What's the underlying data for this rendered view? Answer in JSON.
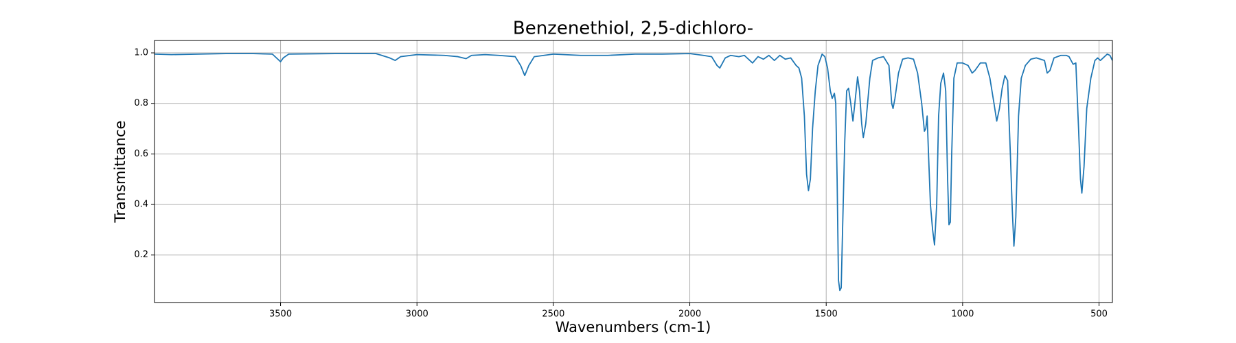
{
  "chart_data": {
    "type": "line",
    "title": "Benzenethiol, 2,5-dichloro-",
    "x_label": "Wavenumbers (cm-1)",
    "y_label": "Transmittance",
    "xlim": [
      3962,
      451
    ],
    "ylim": [
      0.012,
      1.049
    ],
    "xticks": [
      3500,
      3000,
      2500,
      2000,
      1500,
      1000,
      500
    ],
    "yticks": [
      0.2,
      0.4,
      0.6,
      0.8,
      {
        "value": 1,
        "label": "1.0"
      }
    ],
    "grid": true,
    "series": [
      {
        "color": "#1f77b4",
        "x": [
          3962,
          3900,
          3800,
          3700,
          3600,
          3530,
          3510,
          3500,
          3490,
          3470,
          3300,
          3150,
          3100,
          3080,
          3060,
          3000,
          2900,
          2850,
          2820,
          2800,
          2750,
          2700,
          2640,
          2620,
          2605,
          2590,
          2570,
          2500,
          2400,
          2300,
          2200,
          2100,
          2000,
          1950,
          1920,
          1900,
          1890,
          1870,
          1850,
          1820,
          1800,
          1770,
          1750,
          1730,
          1710,
          1690,
          1670,
          1650,
          1630,
          1610,
          1600,
          1590,
          1580,
          1572,
          1565,
          1558,
          1550,
          1540,
          1530,
          1515,
          1505,
          1495,
          1485,
          1478,
          1470,
          1465,
          1460,
          1455,
          1450,
          1445,
          1440,
          1432,
          1425,
          1418,
          1410,
          1402,
          1395,
          1385,
          1378,
          1370,
          1364,
          1355,
          1340,
          1330,
          1310,
          1290,
          1270,
          1260,
          1255,
          1248,
          1235,
          1220,
          1200,
          1180,
          1165,
          1150,
          1140,
          1135,
          1130,
          1125,
          1118,
          1110,
          1103,
          1095,
          1088,
          1080,
          1070,
          1062,
          1055,
          1050,
          1045,
          1040,
          1032,
          1020,
          1000,
          980,
          965,
          955,
          935,
          915,
          900,
          885,
          875,
          865,
          855,
          845,
          835,
          825,
          818,
          812,
          805,
          795,
          785,
          770,
          750,
          730,
          700,
          690,
          680,
          665,
          640,
          620,
          610,
          595,
          585,
          575,
          568,
          563,
          555,
          545,
          530,
          515,
          505,
          495,
          485,
          470,
          460,
          451
        ],
        "values": [
          0.995,
          0.993,
          0.995,
          0.997,
          0.997,
          0.995,
          0.975,
          0.965,
          0.98,
          0.995,
          0.997,
          0.997,
          0.98,
          0.97,
          0.985,
          0.993,
          0.99,
          0.985,
          0.977,
          0.99,
          0.993,
          0.99,
          0.985,
          0.95,
          0.91,
          0.95,
          0.985,
          0.995,
          0.99,
          0.99,
          0.995,
          0.995,
          0.997,
          0.99,
          0.985,
          0.95,
          0.94,
          0.98,
          0.99,
          0.985,
          0.99,
          0.96,
          0.985,
          0.975,
          0.99,
          0.97,
          0.99,
          0.975,
          0.98,
          0.95,
          0.94,
          0.9,
          0.75,
          0.52,
          0.455,
          0.5,
          0.7,
          0.85,
          0.95,
          0.995,
          0.985,
          0.94,
          0.85,
          0.82,
          0.84,
          0.8,
          0.5,
          0.1,
          0.06,
          0.07,
          0.3,
          0.65,
          0.85,
          0.86,
          0.8,
          0.73,
          0.8,
          0.905,
          0.85,
          0.72,
          0.665,
          0.72,
          0.9,
          0.97,
          0.98,
          0.985,
          0.95,
          0.8,
          0.78,
          0.82,
          0.92,
          0.975,
          0.98,
          0.975,
          0.92,
          0.8,
          0.69,
          0.7,
          0.75,
          0.6,
          0.4,
          0.3,
          0.24,
          0.4,
          0.75,
          0.88,
          0.92,
          0.85,
          0.5,
          0.32,
          0.33,
          0.6,
          0.9,
          0.96,
          0.96,
          0.95,
          0.92,
          0.93,
          0.96,
          0.96,
          0.9,
          0.8,
          0.73,
          0.78,
          0.86,
          0.91,
          0.89,
          0.6,
          0.38,
          0.235,
          0.35,
          0.75,
          0.9,
          0.95,
          0.975,
          0.98,
          0.97,
          0.92,
          0.93,
          0.98,
          0.99,
          0.99,
          0.985,
          0.955,
          0.96,
          0.7,
          0.5,
          0.445,
          0.55,
          0.78,
          0.9,
          0.97,
          0.98,
          0.97,
          0.98,
          0.995,
          0.99,
          0.97
        ]
      }
    ]
  }
}
